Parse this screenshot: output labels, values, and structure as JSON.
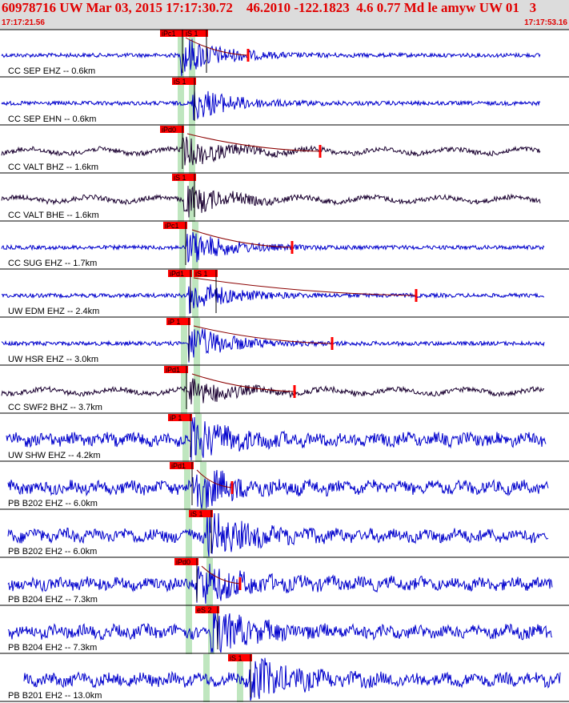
{
  "header": {
    "title": "60978716 UW Mar 03, 2015 17:17:30.72    46.2010 -122.1823  4.6 0.77 Md le amyw UW 01   3",
    "start_time": "17:17:21.56",
    "end_time": "17:17:53.16"
  },
  "colors": {
    "header_bg": "#dcdcdc",
    "header_text": "#e00000",
    "trace_blue": "#0000cc",
    "trace_dark": "#1a0030",
    "pick_red": "#ff0000",
    "band_green": "#bfe6bf"
  },
  "channels": [
    {
      "label": "CC SEP EHZ -- 0.6km",
      "picks": [
        "iPc1",
        "iS 1"
      ],
      "style": "blue"
    },
    {
      "label": "CC SEP EHN -- 0.6km",
      "picks": [
        "iS 1"
      ],
      "style": "blue"
    },
    {
      "label": "CC VALT BHZ -- 1.6km",
      "picks": [
        "iPd0"
      ],
      "style": "dark"
    },
    {
      "label": "CC VALT BHE -- 1.6km",
      "picks": [
        "iS 1"
      ],
      "style": "dark"
    },
    {
      "label": "CC SUG EHZ -- 1.7km",
      "picks": [
        "iPc1"
      ],
      "style": "blue"
    },
    {
      "label": "UW EDM EHZ -- 2.4km",
      "picks": [
        "iPd1",
        "iS 1"
      ],
      "style": "blue"
    },
    {
      "label": "UW HSR EHZ -- 3.0km",
      "picks": [
        "iP 1"
      ],
      "style": "blue"
    },
    {
      "label": "CC SWF2 BHZ -- 3.7km",
      "picks": [
        "iPd1"
      ],
      "style": "dark"
    },
    {
      "label": "UW SHW EHZ -- 4.2km",
      "picks": [
        "iP 1"
      ],
      "style": "blue"
    },
    {
      "label": "PB B202 EHZ -- 6.0km",
      "picks": [
        "iPd1"
      ],
      "style": "blue"
    },
    {
      "label": "PB B202 EH2 -- 6.0km",
      "picks": [
        "iS 1"
      ],
      "style": "blue"
    },
    {
      "label": "PB B204 EHZ -- 7.3km",
      "picks": [
        "iPd0"
      ],
      "style": "blue"
    },
    {
      "label": "PB B204 EH2 -- 7.3km",
      "picks": [
        "eS 2"
      ],
      "style": "blue"
    },
    {
      "label": "PB B201 EH2 -- 13.0km",
      "picks": [
        "iS 1"
      ],
      "style": "blue"
    }
  ]
}
